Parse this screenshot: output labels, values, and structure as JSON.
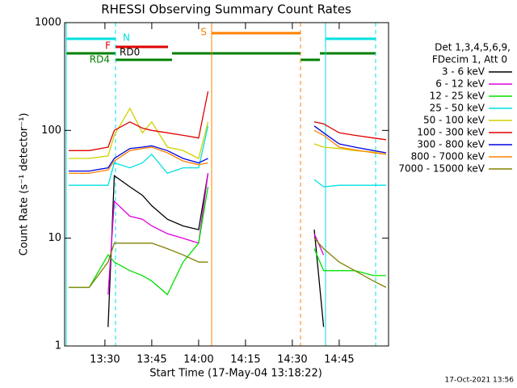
{
  "chart_data": {
    "type": "line",
    "title": "RHESSI Observing Summary Count Rates",
    "xlabel": "Start Time (17-May-04 13:18:22)",
    "ylabel": "Count Rate (s⁻¹ detector⁻¹)",
    "footer": "17-Oct-2021 13:56",
    "legend_header": [
      "Det 1,3,4,5,6,9,",
      "FDecim 1, Att 0"
    ],
    "flag_labels": [
      "N",
      "F",
      "RD0",
      "RD4",
      "S"
    ],
    "log_y": true,
    "xlim": [
      17.1,
      120.8
    ],
    "ylim": [
      1,
      1000
    ],
    "yticks": [
      1,
      10,
      100,
      1000
    ],
    "xticks": [
      {
        "value": 30,
        "label": "13:30"
      },
      {
        "value": 45,
        "label": "13:45"
      },
      {
        "value": 60,
        "label": "14:00"
      },
      {
        "value": 75,
        "label": "14:15"
      },
      {
        "value": 90,
        "label": "14:30"
      },
      {
        "value": 105,
        "label": "14:45"
      }
    ],
    "x": [
      18.4,
      25,
      31,
      33,
      38,
      42,
      45,
      50,
      55,
      60,
      63,
      80,
      97,
      100,
      105,
      110,
      116,
      120
    ],
    "series": [
      {
        "name": "3 - 6 keV",
        "color": "#000000",
        "values": [
          null,
          null,
          1.5,
          38,
          30,
          25,
          20,
          15,
          13,
          12,
          40,
          null,
          12,
          1.5,
          null,
          null,
          null,
          null
        ]
      },
      {
        "name": "6 - 12 keV",
        "color": "#e000e0",
        "values": [
          null,
          null,
          3,
          22,
          16,
          15,
          13,
          11,
          10,
          9,
          40,
          null,
          11,
          7,
          null,
          null,
          null,
          null
        ]
      },
      {
        "name": "12 - 25 keV",
        "color": "#00e000",
        "values": [
          3.5,
          3.5,
          7,
          6,
          5,
          4.5,
          4,
          3,
          6,
          9,
          30,
          null,
          8,
          5,
          5,
          5,
          4.5,
          4.5
        ]
      },
      {
        "name": "25 - 50 keV",
        "color": "#00e0e0",
        "values": [
          31,
          31,
          31,
          50,
          45,
          50,
          60,
          40,
          45,
          45,
          110,
          null,
          35,
          30,
          31,
          31,
          31,
          31
        ]
      },
      {
        "name": "50 - 100 keV",
        "color": "#d0d000",
        "values": [
          55,
          55,
          58,
          90,
          160,
          95,
          120,
          70,
          65,
          55,
          120,
          null,
          75,
          70,
          68,
          65,
          63,
          60
        ]
      },
      {
        "name": "100 - 300 keV",
        "color": "#e00000",
        "values": [
          65,
          65,
          70,
          100,
          120,
          105,
          100,
          95,
          90,
          85,
          230,
          null,
          120,
          115,
          95,
          90,
          85,
          82
        ]
      },
      {
        "name": "300 - 800 keV",
        "color": "#0000e0",
        "values": [
          42,
          42,
          45,
          55,
          68,
          70,
          72,
          65,
          55,
          50,
          55,
          null,
          110,
          95,
          75,
          70,
          65,
          62
        ]
      },
      {
        "name": "800 - 7000 keV",
        "color": "#ff8000",
        "values": [
          40,
          40,
          43,
          52,
          65,
          68,
          70,
          62,
          52,
          48,
          50,
          null,
          100,
          90,
          70,
          66,
          62,
          60
        ]
      },
      {
        "name": "7000 - 15000 keV",
        "color": "#808000",
        "values": [
          3.5,
          3.5,
          6,
          9,
          9,
          9,
          9,
          8,
          7,
          6,
          6,
          null,
          10,
          8,
          6,
          5,
          4,
          3.5
        ]
      }
    ]
  }
}
